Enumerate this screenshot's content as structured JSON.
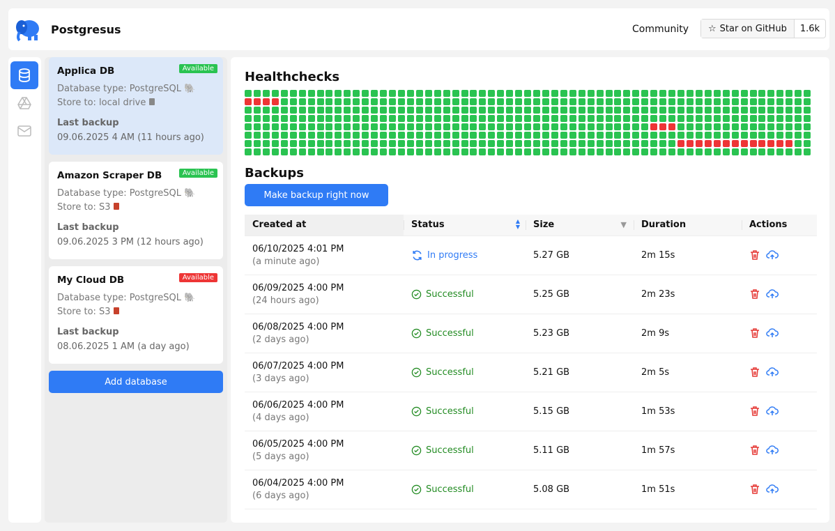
{
  "header": {
    "brand": "Postgresus",
    "community": "Community",
    "github_label": "Star on GitHub",
    "github_count": "1.6k"
  },
  "rail": {
    "items": [
      {
        "icon": "database-icon",
        "active": true
      },
      {
        "icon": "google-drive-icon",
        "active": false
      },
      {
        "icon": "mail-icon",
        "active": false
      }
    ]
  },
  "databases": [
    {
      "name": "Applica DB",
      "status": "Available",
      "status_color": "#2ac351",
      "type": "Database type: PostgreSQL",
      "store": "Store to: local drive",
      "last_label": "Last backup",
      "last": "09.06.2025 4 AM (11 hours ago)",
      "selected": true
    },
    {
      "name": "Amazon Scraper DB",
      "status": "Available",
      "status_color": "#2ac351",
      "type": "Database type: PostgreSQL",
      "store": "Store to: S3",
      "last_label": "Last backup",
      "last": "09.06.2025 3 PM (12 hours ago)",
      "selected": false
    },
    {
      "name": "My Cloud DB",
      "status": "Available",
      "status_color": "#ee3535",
      "type": "Database type: PostgreSQL",
      "store": "Store to: S3",
      "last_label": "Last backup",
      "last": "08.06.2025 1 AM (a day ago)",
      "selected": false
    }
  ],
  "add_database": "Add database",
  "healthchecks": {
    "title": "Healthchecks",
    "rows": 8,
    "cols": 63,
    "ok_color": "#2ac351",
    "fail_color": "#ee3535",
    "failures": [
      [
        1,
        0
      ],
      [
        1,
        1
      ],
      [
        1,
        2
      ],
      [
        1,
        3
      ],
      [
        4,
        45
      ],
      [
        4,
        46
      ],
      [
        4,
        47
      ],
      [
        6,
        48
      ],
      [
        6,
        49
      ],
      [
        6,
        50
      ],
      [
        6,
        51
      ],
      [
        6,
        52
      ],
      [
        6,
        53
      ],
      [
        6,
        54
      ],
      [
        6,
        55
      ],
      [
        6,
        56
      ],
      [
        6,
        57
      ],
      [
        6,
        58
      ],
      [
        6,
        59
      ],
      [
        6,
        60
      ]
    ]
  },
  "backups": {
    "title": "Backups",
    "make_button": "Make backup right now",
    "columns": [
      "Created at",
      "Status",
      "Size",
      "Duration",
      "Actions"
    ],
    "rows": [
      {
        "date": "06/10/2025 4:01 PM",
        "ago": "(a minute ago)",
        "status": "In progress",
        "size": "5.27 GB",
        "duration": "2m 15s"
      },
      {
        "date": "06/09/2025 4:00 PM",
        "ago": "(24 hours ago)",
        "status": "Successful",
        "size": "5.25 GB",
        "duration": "2m 23s"
      },
      {
        "date": "06/08/2025 4:00 PM",
        "ago": "(2 days ago)",
        "status": "Successful",
        "size": "5.23 GB",
        "duration": "2m 9s"
      },
      {
        "date": "06/07/2025 4:00 PM",
        "ago": "(3 days ago)",
        "status": "Successful",
        "size": "5.21 GB",
        "duration": "2m 5s"
      },
      {
        "date": "06/06/2025 4:00 PM",
        "ago": "(4 days ago)",
        "status": "Successful",
        "size": "5.15 GB",
        "duration": "1m 53s"
      },
      {
        "date": "06/05/2025 4:00 PM",
        "ago": "(5 days ago)",
        "status": "Successful",
        "size": "5.11 GB",
        "duration": "1m 57s"
      },
      {
        "date": "06/04/2025 4:00 PM",
        "ago": "(6 days ago)",
        "status": "Successful",
        "size": "5.08 GB",
        "duration": "1m 51s"
      }
    ]
  }
}
